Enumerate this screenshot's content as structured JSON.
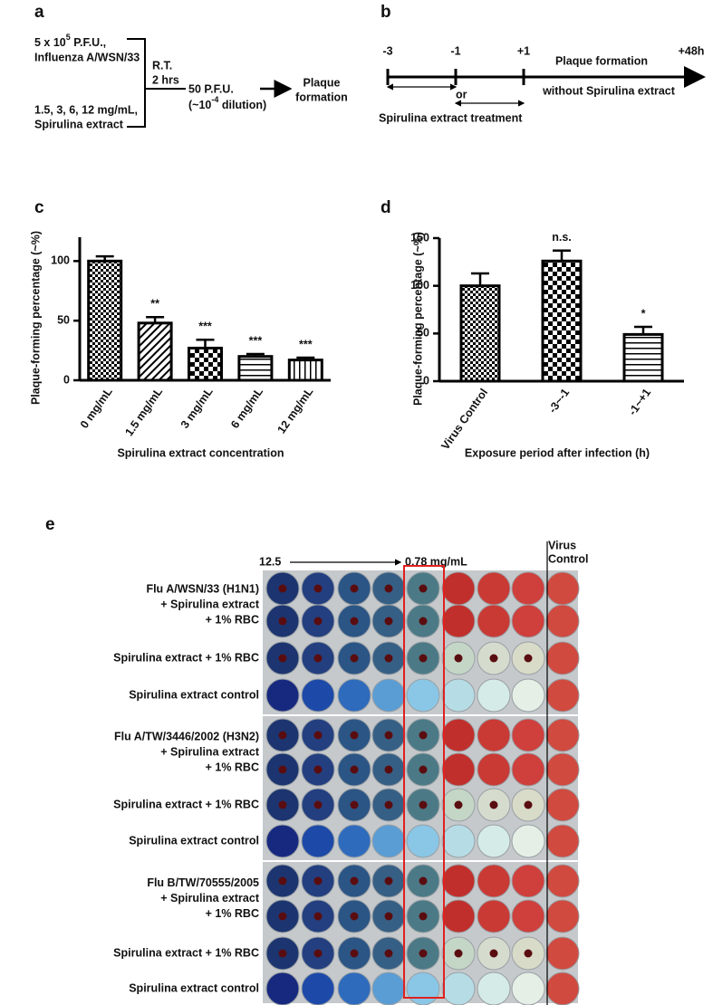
{
  "panel_a": {
    "label": "a",
    "virus": {
      "base": "5 x 10",
      "exp": "5",
      "unit": " P.F.U.,"
    },
    "strain": "Influenza A/WSN/33",
    "extract_lines": [
      "1.5, 3, 6, 12 mg/mL,",
      "Spirulina extract"
    ],
    "incubation": [
      "R.T.",
      "2 hrs"
    ],
    "dose": "50 P.F.U.",
    "dilution": {
      "base": "(~10",
      "exp": "-4",
      "unit": " dilution)"
    },
    "result": [
      "Plaque",
      "formation"
    ]
  },
  "panel_b": {
    "label": "b",
    "timepoints": [
      "-3",
      "-1",
      "+1",
      "+48h"
    ],
    "after": [
      "Plaque formation",
      "without Spirulina extract"
    ],
    "or": "or",
    "treatment": "Spirulina extract treatment"
  },
  "chart_data": [
    {
      "type": "bar",
      "label": "c",
      "categories": [
        "0 mg/mL",
        "1.5 mg/mL",
        "3 mg/mL",
        "6 mg/mL",
        "12 mg/mL"
      ],
      "values": [
        100,
        48,
        27,
        20,
        17
      ],
      "errors": [
        4,
        5,
        7,
        2,
        2
      ],
      "annotations": [
        null,
        "**",
        "***",
        "***",
        "***"
      ],
      "ylabel": "Plaque-forming percentage (~%)",
      "xlabel": "Spirulina extract concentration",
      "ylim": [
        0,
        120
      ],
      "yticks": [
        0,
        50,
        100
      ],
      "color": "#000000"
    },
    {
      "type": "bar",
      "label": "d",
      "categories": [
        "Virus Control",
        "-3~-1",
        "-1~+1"
      ],
      "values": [
        100,
        126,
        49
      ],
      "errors": [
        13,
        11,
        8
      ],
      "annotations": [
        null,
        "n.s.",
        "*"
      ],
      "ylabel": "Plaque-forming percentage (~%)",
      "xlabel": "Exposure period after infection (h)",
      "ylim": [
        0,
        150
      ],
      "yticks": [
        0,
        50,
        100,
        150
      ],
      "color": "#000000"
    }
  ],
  "panel_e": {
    "label": "e",
    "start": "12.5",
    "end": "0.78 mg/mL",
    "control": [
      "Virus",
      "Control"
    ],
    "groups": [
      {
        "name": [
          "Flu A/WSN/33 (H1N1)",
          "+ Spirulina extract",
          "+ 1% RBC"
        ],
        "rbc": "Spirulina extract + 1% RBC",
        "extract_control": "Spirulina extract control"
      },
      {
        "name": [
          "Flu A/TW/3446/2002 (H3N2)",
          "+ Spirulina extract",
          "+ 1% RBC"
        ],
        "rbc": "Spirulina extract + 1% RBC",
        "extract_control": "Spirulina extract control"
      },
      {
        "name": [
          "Flu B/TW/70555/2005",
          "+ Spirulina extract",
          "+ 1% RBC"
        ],
        "rbc": "Spirulina extract + 1% RBC",
        "extract_control": "Spirulina extract control"
      }
    ]
  }
}
